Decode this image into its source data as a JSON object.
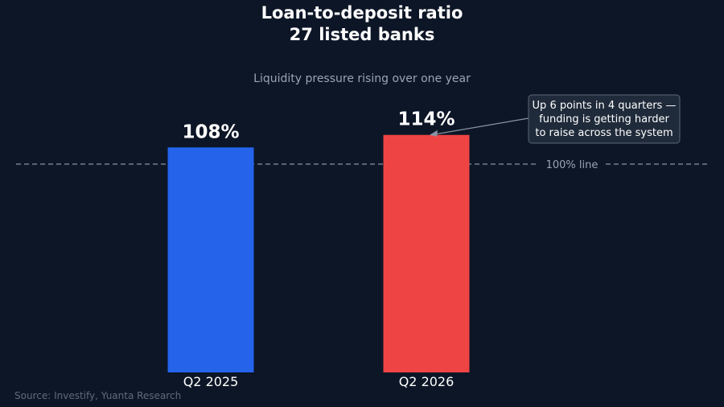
{
  "chart_data": {
    "type": "bar",
    "title_lines": [
      "Loan-to-deposit ratio",
      "27 listed banks"
    ],
    "subtitle": "Liquidity pressure rising over one year",
    "categories": [
      "Q2 2025",
      "Q2 2026"
    ],
    "values": [
      108,
      114
    ],
    "value_labels": [
      "108%",
      "114%"
    ],
    "bar_colors": [
      "#2563eb",
      "#ef4444"
    ],
    "ylim": [
      0,
      130
    ],
    "grid": false,
    "reference_line": {
      "value": 100,
      "label": "100% line"
    },
    "annotation": {
      "lines": [
        "Up 6 points in 4 quarters —",
        "funding is getting harder",
        "to raise across the system"
      ],
      "target_category": "Q2 2026"
    },
    "source": "Source: Investify, Yuanta Research"
  },
  "colors": {
    "background": "#0d1626",
    "title": "#ffffff",
    "muted_text": "#9aa4b2",
    "source_text": "#5f6b7a",
    "reference_line": "#8a94a3",
    "annotation_box": "#1f2a3a",
    "annotation_border": "#5b6675"
  }
}
